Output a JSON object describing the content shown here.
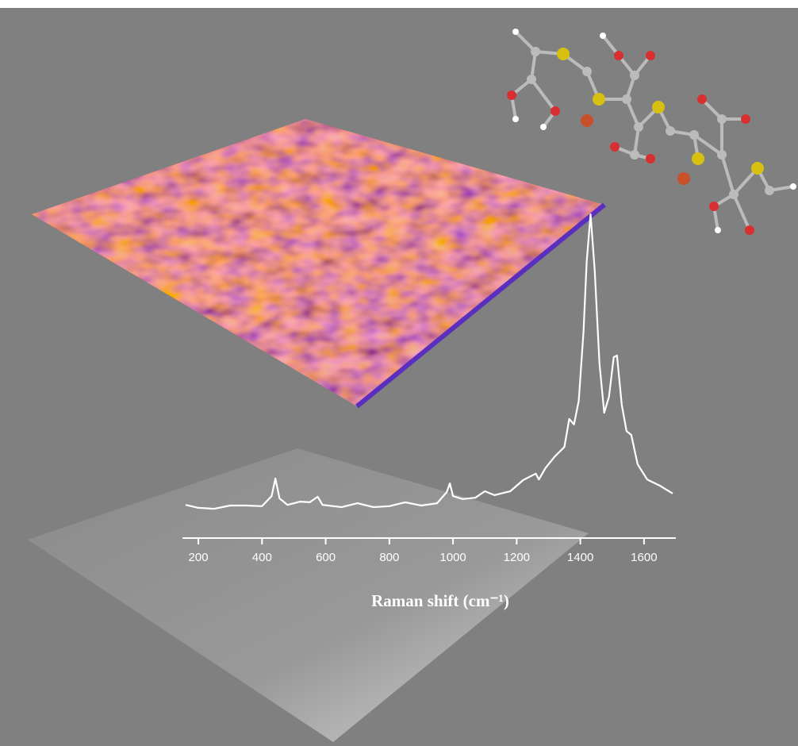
{
  "chart_data": {
    "type": "line",
    "x_label": "Raman shift (cm⁻¹)",
    "x": [
      160,
      200,
      250,
      300,
      350,
      400,
      430,
      442,
      455,
      480,
      520,
      550,
      575,
      590,
      650,
      700,
      750,
      800,
      850,
      900,
      950,
      980,
      990,
      1000,
      1030,
      1070,
      1100,
      1130,
      1180,
      1220,
      1260,
      1270,
      1290,
      1320,
      1350,
      1365,
      1380,
      1395,
      1410,
      1420,
      1432,
      1445,
      1460,
      1475,
      1490,
      1505,
      1515,
      1530,
      1545,
      1560,
      1580,
      1610,
      1650,
      1690
    ],
    "values": [
      10.2,
      9.3,
      9.0,
      10.0,
      10.0,
      9.8,
      12.9,
      18.3,
      12.2,
      10.2,
      11.2,
      11.0,
      12.7,
      10.2,
      9.5,
      10.7,
      9.5,
      9.8,
      11.0,
      10.0,
      10.7,
      14.1,
      16.8,
      12.9,
      12.0,
      12.4,
      14.4,
      13.2,
      14.4,
      17.8,
      19.8,
      18.0,
      21.5,
      25.1,
      28.0,
      36.6,
      34.9,
      42.2,
      63.4,
      84.9,
      99.5,
      82.4,
      53.7,
      38.5,
      43.4,
      55.6,
      56.1,
      41.0,
      32.9,
      31.7,
      22.7,
      18.0,
      16.1,
      13.7
    ],
    "color": "#ffffff",
    "xlim": [
      150,
      1700
    ],
    "xticks": [
      200,
      400,
      600,
      800,
      1000,
      1200,
      1400,
      1600
    ],
    "ylim": [
      0,
      100
    ]
  }
}
